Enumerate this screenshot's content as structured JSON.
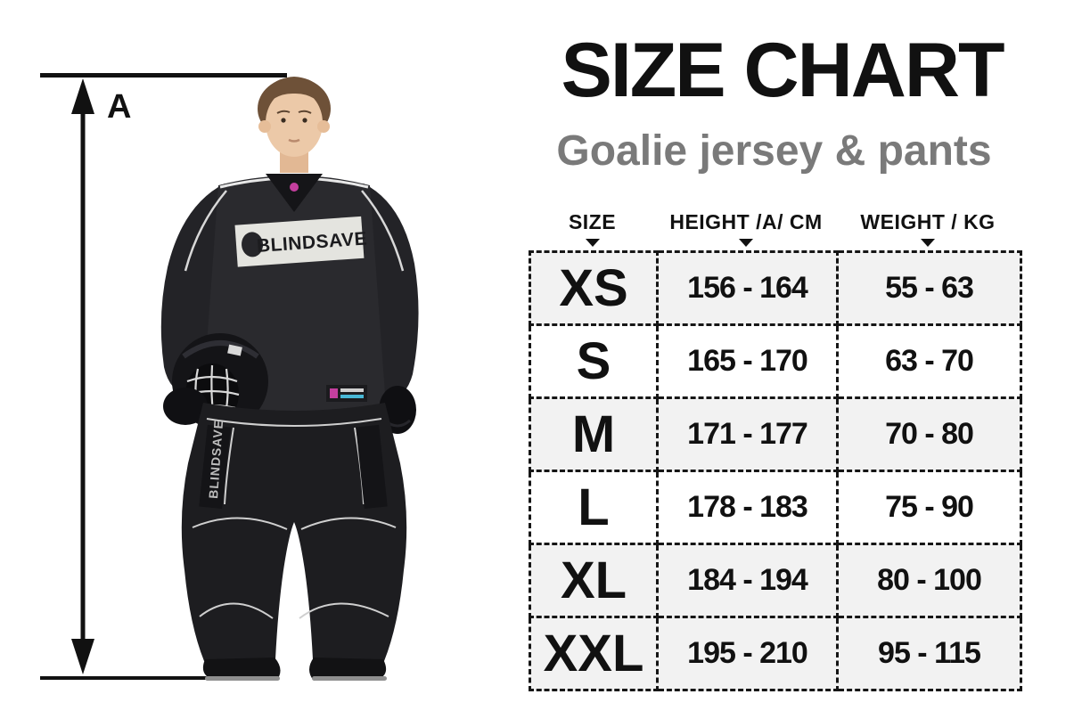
{
  "header": {
    "title": "SIZE CHART",
    "subtitle": "Goalie jersey & pants"
  },
  "measurement": {
    "label": "A"
  },
  "figure": {
    "description": "Goalkeeper wearing black BLINDSAVE goalie jersey and pants, holding a goalie mask under one arm",
    "jersey_brand": "BLINDSAVE",
    "pants_brand": "BLINDSAVE"
  },
  "table": {
    "columns": [
      {
        "label": "SIZE"
      },
      {
        "label": "HEIGHT /A/ CM"
      },
      {
        "label": "WEIGHT / KG"
      }
    ],
    "rows": [
      {
        "size": "XS",
        "height": "156 - 164",
        "weight": "55 - 63",
        "shaded": true
      },
      {
        "size": "S",
        "height": "165 - 170",
        "weight": "63 - 70",
        "shaded": false
      },
      {
        "size": "M",
        "height": "171 - 177",
        "weight": "70 - 80",
        "shaded": true
      },
      {
        "size": "L",
        "height": "178 - 183",
        "weight": "75 - 90",
        "shaded": false
      },
      {
        "size": "XL",
        "height": "184 - 194",
        "weight": "80 - 100",
        "shaded": true
      },
      {
        "size": "XXL",
        "height": "195 - 210",
        "weight": "95 - 115",
        "shaded": true
      }
    ]
  },
  "colors": {
    "title": "#111111",
    "subtitle": "#7a7a7a",
    "row_shaded": "#f2f2f2",
    "table_border": "#161616",
    "gear_black": "#1d1d20",
    "accent_pink": "#c43f9e",
    "accent_blue": "#49b8d6"
  }
}
